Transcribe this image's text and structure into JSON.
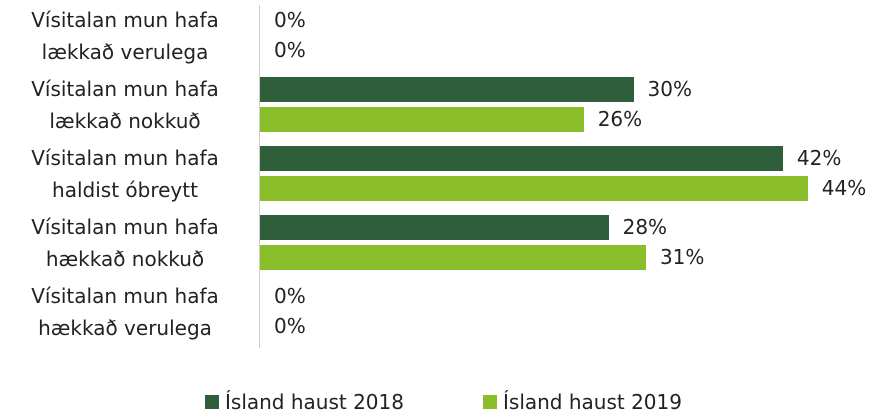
{
  "chart_data": {
    "type": "bar",
    "orientation": "horizontal",
    "categories": [
      "Vísitalan mun hafa\nlækkað verulega",
      "Vísitalan mun hafa\nlækkað nokkuð",
      "Vísitalan mun hafa\nhaldist óbreytt",
      "Vísitalan mun hafa\nhækkað nokkuð",
      "Vísitalan mun hafa\nhækkað verulega"
    ],
    "series": [
      {
        "name": "Ísland haust 2018",
        "color": "#2e5e3a",
        "values": [
          0,
          30,
          42,
          28,
          0
        ],
        "value_labels": [
          "0%",
          "30%",
          "42%",
          "28%",
          "0%"
        ]
      },
      {
        "name": "Ísland haust 2019",
        "color": "#8abd2a",
        "values": [
          0,
          26,
          44,
          31,
          0
        ],
        "value_labels": [
          "0%",
          "26%",
          "44%",
          "31%",
          "0%"
        ]
      }
    ],
    "legend": "bottom"
  }
}
